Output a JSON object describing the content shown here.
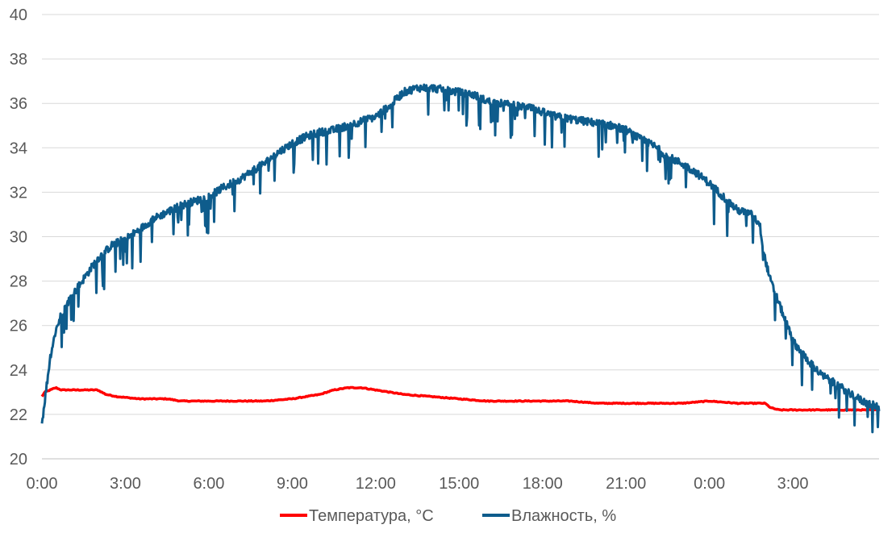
{
  "chart_data": {
    "type": "line",
    "title": "",
    "xlabel": "",
    "ylabel": "",
    "ylim": [
      20,
      40
    ],
    "xlim_hours": [
      0,
      30.1
    ],
    "yticks": [
      "20",
      "22",
      "24",
      "26",
      "28",
      "30",
      "32",
      "34",
      "36",
      "38",
      "40"
    ],
    "xticks": [
      "0:00",
      "3:00",
      "6:00",
      "9:00",
      "12:00",
      "15:00",
      "18:00",
      "21:00",
      "0:00",
      "3:00"
    ],
    "grid": true,
    "legend_position": "bottom",
    "series": [
      {
        "name": "Температура, °С",
        "color": "#ff0000",
        "x": [
          0,
          0.1,
          0.3,
          0.5,
          0.7,
          1.0,
          1.5,
          2.0,
          2.3,
          2.7,
          3.5,
          4.5,
          5.0,
          5.5,
          6.0,
          7.0,
          8.0,
          9.0,
          9.5,
          10.0,
          10.5,
          11.0,
          11.5,
          12.0,
          12.5,
          13.0,
          14.0,
          15.0,
          16.0,
          17.0,
          18.0,
          19.0,
          20.0,
          21.0,
          22.0,
          23.0,
          24.0,
          25.0,
          26.0,
          26.2,
          26.5,
          27.0,
          28.0,
          29.0,
          30.1
        ],
        "y": [
          22.8,
          23.0,
          23.1,
          23.2,
          23.1,
          23.1,
          23.1,
          23.1,
          22.9,
          22.8,
          22.7,
          22.7,
          22.6,
          22.6,
          22.6,
          22.6,
          22.6,
          22.7,
          22.8,
          22.9,
          23.1,
          23.2,
          23.2,
          23.1,
          23.0,
          22.9,
          22.8,
          22.7,
          22.6,
          22.6,
          22.6,
          22.6,
          22.5,
          22.5,
          22.5,
          22.5,
          22.6,
          22.5,
          22.5,
          22.3,
          22.2,
          22.2,
          22.2,
          22.2,
          22.2
        ]
      },
      {
        "name": "Влажность, %",
        "color": "#0e5c8c",
        "x": [
          0,
          0.1,
          0.2,
          0.3,
          0.5,
          0.7,
          1.0,
          1.5,
          2.0,
          2.5,
          3.0,
          3.5,
          4.0,
          4.5,
          5.0,
          5.5,
          6.0,
          6.5,
          7.0,
          7.5,
          8.0,
          8.5,
          9.0,
          9.5,
          10.0,
          10.5,
          11.0,
          11.5,
          12.0,
          12.5,
          13.0,
          13.5,
          14.0,
          14.5,
          15.0,
          15.5,
          16.0,
          16.5,
          17.0,
          17.5,
          18.0,
          18.5,
          19.0,
          19.5,
          20.0,
          20.5,
          21.0,
          21.5,
          22.0,
          22.5,
          23.0,
          23.5,
          24.0,
          24.5,
          25.0,
          25.5,
          25.8,
          26.0,
          26.2,
          26.5,
          26.8,
          27.0,
          27.5,
          28.0,
          28.5,
          29.0,
          29.5,
          30.1
        ],
        "y": [
          21.6,
          22.6,
          23.6,
          24.6,
          25.8,
          26.5,
          27.2,
          28.1,
          29.0,
          29.6,
          29.9,
          30.3,
          30.8,
          31.1,
          31.4,
          31.6,
          31.8,
          32.2,
          32.5,
          32.9,
          33.3,
          33.8,
          34.2,
          34.5,
          34.7,
          34.8,
          35.0,
          35.2,
          35.4,
          35.9,
          36.5,
          36.7,
          36.7,
          36.6,
          36.5,
          36.4,
          36.1,
          36.0,
          35.9,
          35.8,
          35.6,
          35.4,
          35.3,
          35.2,
          35.1,
          35.0,
          34.8,
          34.4,
          34.1,
          33.6,
          33.3,
          32.9,
          32.4,
          31.8,
          31.2,
          31.0,
          30.6,
          29.0,
          28.0,
          27.0,
          26.0,
          25.3,
          24.5,
          23.8,
          23.4,
          23.0,
          22.6,
          22.3
        ]
      }
    ]
  }
}
